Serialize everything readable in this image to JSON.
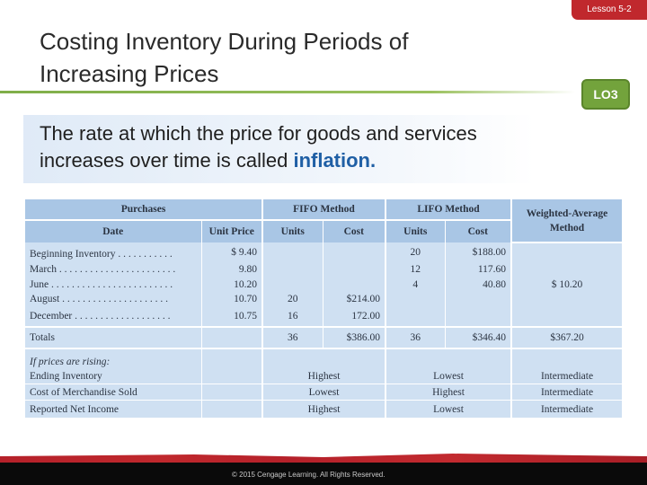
{
  "slide": {
    "lesson": "Lesson 5-2",
    "title_line1": "Costing Inventory During Periods of",
    "title_line2": "Increasing Prices",
    "lo_badge": "LO3",
    "intro_text": "The rate at which the price for goods and services increases over time is called ",
    "intro_highlight": "inflation."
  },
  "table": {
    "groups": {
      "purchases": "Purchases",
      "fifo": "FIFO Method",
      "lifo": "LIFO Method",
      "wa_line1": "Weighted-Average",
      "wa_line2": "Method"
    },
    "columns": {
      "date": "Date",
      "unit_price": "Unit Price",
      "fifo_units": "Units",
      "fifo_cost": "Cost",
      "lifo_units": "Units",
      "lifo_cost": "Cost"
    },
    "rows": [
      {
        "date": "Beginning Inventory . . . . . . . . . . .",
        "unit_price": "$  9.40",
        "fifo_units": "",
        "fifo_cost": "",
        "lifo_units": "20",
        "lifo_cost": "$188.00",
        "wa": ""
      },
      {
        "date": "March . . . . . . . . . . . . . . . . . . . . . . .",
        "unit_price": "9.80",
        "fifo_units": "",
        "fifo_cost": "",
        "lifo_units": "12",
        "lifo_cost": "117.60",
        "wa": ""
      },
      {
        "date": "June . . . . . . . . . . . . . . . . . . . . . . . .",
        "unit_price": "10.20",
        "fifo_units": "",
        "fifo_cost": "",
        "lifo_units": "4",
        "lifo_cost": "40.80",
        "wa": "$  10.20"
      },
      {
        "date": "August . . . . . . . . . . . . . . . . . . . . .",
        "unit_price": "10.70",
        "fifo_units": "20",
        "fifo_cost": "$214.00",
        "lifo_units": "",
        "lifo_cost": "",
        "wa": ""
      },
      {
        "date": "December . . . . . . . . . . . . . . . . . . .",
        "unit_price": "10.75",
        "fifo_units": "16",
        "fifo_cost": "172.00",
        "lifo_units": "",
        "lifo_cost": "",
        "wa": ""
      }
    ],
    "totals": {
      "label": "Totals",
      "fifo_units": "36",
      "fifo_cost": "$386.00",
      "lifo_units": "36",
      "lifo_cost": "$346.40",
      "wa": "$367.20"
    },
    "rising_label": "If prices are rising:",
    "effects": [
      {
        "label": "Ending Inventory",
        "fifo": "Highest",
        "lifo": "Lowest",
        "wa": "Intermediate"
      },
      {
        "label": "Cost of Merchandise Sold",
        "fifo": "Lowest",
        "lifo": "Highest",
        "wa": "Intermediate"
      },
      {
        "label": "Reported Net Income",
        "fifo": "Highest",
        "lifo": "Lowest",
        "wa": "Intermediate"
      }
    ]
  },
  "footer": {
    "copyright": "© 2015 Cengage Learning. All Rights Reserved."
  }
}
